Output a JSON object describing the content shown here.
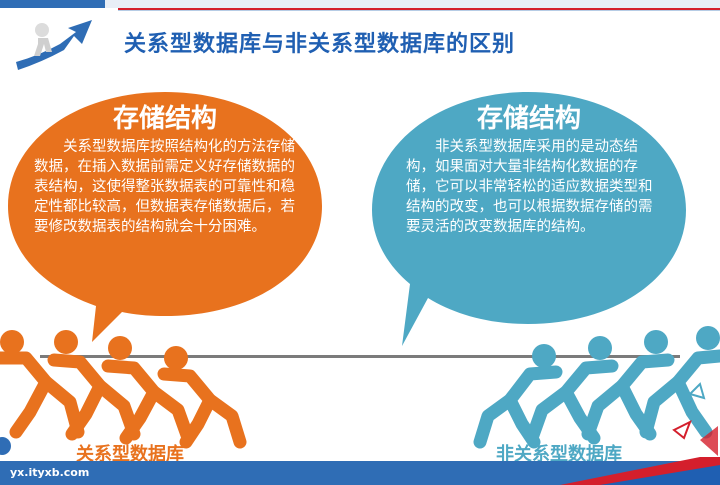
{
  "title": "关系型数据库与非关系型数据库的区别",
  "left": {
    "heading": "存储结构",
    "body": "关系型数据库按照结构化的方法存储数据，在插入数据前需定义好存储数据的表结构，这使得整张数据表的可靠性和稳定性都比较高，但数据表存储数据后，若要修改数据表的结构就会十分困难。",
    "caption": "关系型数据库",
    "color": "#e8721e"
  },
  "right": {
    "heading": "存储结构",
    "body": "非关系型数据库采用的是动态结构，如果面对大量非结构化数据的存储，它可以非常轻松的适应数据类型和结构的改变，也可以根据数据存储的需要灵活的改变数据库的结构。",
    "caption": "非关系型数据库",
    "color": "#4ea8c4"
  },
  "footer": {
    "url": "yx.ityxb.com"
  },
  "colors": {
    "title": "#1f5fb2",
    "accent_red": "#d41f2c",
    "footer_blue": "#2f6db5"
  }
}
